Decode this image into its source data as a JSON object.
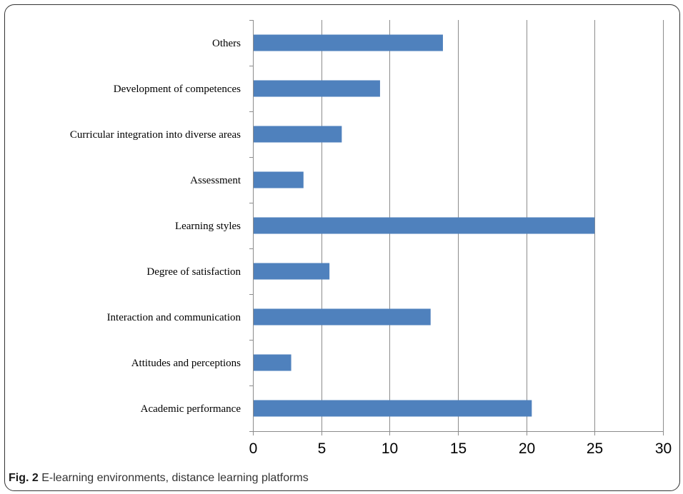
{
  "caption": {
    "label": "Fig. 2",
    "text": "E-learning environments, distance learning platforms"
  },
  "chart_data": {
    "type": "bar",
    "orientation": "horizontal",
    "categories": [
      "Others",
      "Development of competences",
      "Curricular integration into diverse areas",
      "Assessment",
      "Learning styles",
      "Degree of satisfaction",
      "Interaction and communication",
      "Attitudes and perceptions",
      "Academic performance"
    ],
    "values": [
      13.9,
      9.3,
      6.5,
      3.7,
      25,
      5.6,
      13,
      2.8,
      20.4
    ],
    "xlim": [
      0,
      30
    ],
    "xticks": [
      "0",
      "5",
      "10",
      "15",
      "20",
      "25",
      "30"
    ],
    "grid": true,
    "bar_color": "#4f81bd",
    "title": "",
    "xlabel": "",
    "ylabel": ""
  }
}
